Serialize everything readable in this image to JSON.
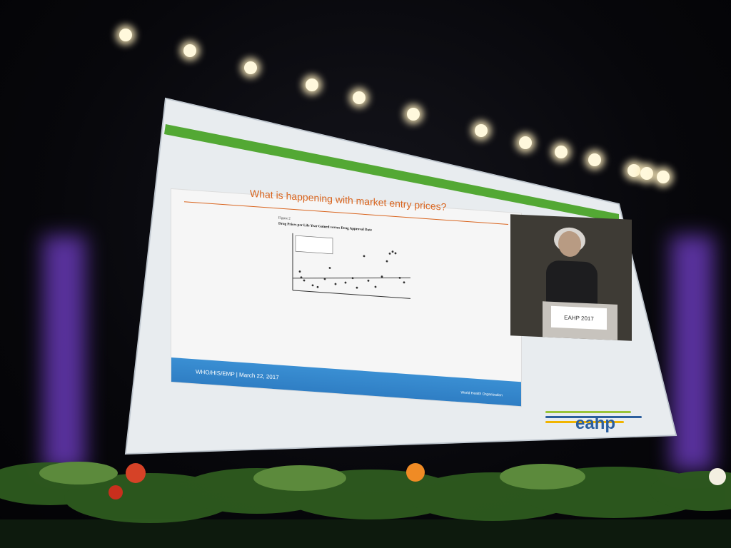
{
  "slide": {
    "title": "What is happening with market entry prices?",
    "figure_label": "Figure 2",
    "figure_caption": "Drug Prices per Life Year Gained versus Drug Approval Date",
    "footer_text": "WHO/HIS/EMP  |  March 22, 2017",
    "org_name": "World Health Organization"
  },
  "video": {
    "podium_sign": "EAHP 2017"
  },
  "branding": {
    "eahp": "eahp"
  },
  "colors": {
    "accent_green": "#53a834",
    "title_orange": "#d9651f",
    "footer_blue": "#2f7ec4"
  }
}
